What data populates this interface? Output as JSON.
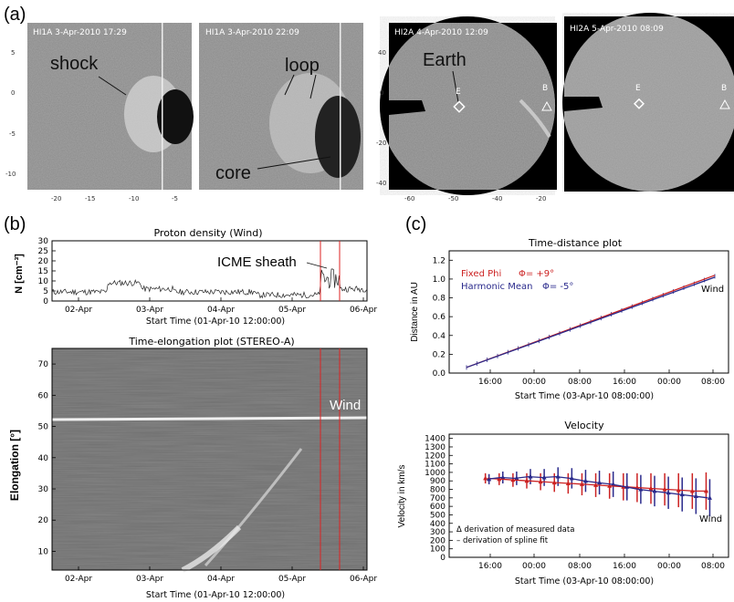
{
  "panel_labels": {
    "a": "(a)",
    "b": "(b)",
    "c": "(c)"
  },
  "images": [
    {
      "title": "HI1A   3-Apr-2010 17:29",
      "annotations": [
        "shock"
      ],
      "xticks": [
        "-20",
        "-15",
        "-10",
        "-5"
      ],
      "yticks": [
        "5",
        "0",
        "-5",
        "-10"
      ]
    },
    {
      "title": "HI1A   3-Apr-2010 22:09",
      "annotations": [
        "loop",
        "core"
      ],
      "xticks": [],
      "yticks": []
    },
    {
      "title": "HI2A   4-Apr-2010 12:09",
      "annotations": [
        "Earth",
        "E",
        "B"
      ],
      "xticks": [
        "-60",
        "-50",
        "-40",
        "-20"
      ],
      "yticks": [
        "40",
        "0",
        "-20",
        "-40"
      ]
    },
    {
      "title": "HI2A   5-Apr-2010 08:09",
      "annotations": [
        "E",
        "B"
      ],
      "xticks": [],
      "yticks": []
    }
  ],
  "chart_data": [
    {
      "type": "line",
      "title": "Proton density (Wind)",
      "ylabel": "N [cm⁻³]",
      "xlabel": "Start Time (01-Apr-10 12:00:00)",
      "x_ticks": [
        "02-Apr",
        "03-Apr",
        "04-Apr",
        "05-Apr",
        "06-Apr"
      ],
      "y_ticks": [
        0,
        5,
        10,
        15,
        20,
        25,
        30
      ],
      "ylim": [
        0,
        30
      ],
      "annotation": "ICME sheath",
      "markers": [
        "05-Apr 08:00",
        "05-Apr 17:00"
      ],
      "series_summary": "density fluctuating 3-12 cm^-3, jump to ~18 in sheath"
    },
    {
      "type": "heatmap",
      "title": "Time-elongation plot (STEREO-A)",
      "ylabel": "Elongation [°]",
      "xlabel": "Start Time (01-Apr-10 12:00:00)",
      "x_ticks": [
        "02-Apr",
        "03-Apr",
        "04-Apr",
        "05-Apr",
        "06-Apr"
      ],
      "y_ticks": [
        10,
        20,
        30,
        40,
        50,
        60,
        70
      ],
      "ylim": [
        4,
        75
      ],
      "annotation": "Wind"
    },
    {
      "type": "line",
      "title": "Time-distance plot",
      "ylabel": "Distance in AU",
      "xlabel": "Start Time (03-Apr-10 08:00:00)",
      "x_ticks": [
        "16:00",
        "00:00",
        "08:00",
        "16:00",
        "00:00",
        "08:00"
      ],
      "y_ticks": [
        "0.0",
        "0.2",
        "0.4",
        "0.6",
        "0.8",
        "1.0",
        "1.2"
      ],
      "ylim": [
        0,
        1.3
      ],
      "legend": [
        {
          "name": "Fixed Phi",
          "value": "Φ= +9°",
          "color": "#cc2222"
        },
        {
          "name": "Harmonic Mean",
          "value": "Φ= -5°",
          "color": "#2a2a8c"
        }
      ],
      "annotation": "Wind",
      "series": [
        {
          "name": "Fixed Phi",
          "x": [
            0,
            72
          ],
          "y": [
            0.06,
            1.04
          ]
        },
        {
          "name": "Harmonic Mean",
          "x": [
            0,
            72
          ],
          "y": [
            0.06,
            1.02
          ]
        }
      ]
    },
    {
      "type": "scatter",
      "title": "Velocity",
      "ylabel": "Velocity in km/s",
      "xlabel": "Start Time (03-Apr-10 08:00:00)",
      "x_ticks": [
        "16:00",
        "00:00",
        "08:00",
        "16:00",
        "00:00",
        "08:00"
      ],
      "y_ticks": [
        0,
        100,
        200,
        300,
        400,
        500,
        600,
        700,
        800,
        900,
        1000,
        1100,
        1200,
        1300,
        1400
      ],
      "ylim": [
        0,
        1450
      ],
      "annotation": "Wind",
      "legend_notes": [
        "Δ derivation of measured data",
        "– derivation of spline fit"
      ],
      "series": [
        {
          "name": "Fixed Phi",
          "x": [
            6,
            10,
            14,
            18,
            22,
            26,
            30,
            34,
            38,
            42,
            46,
            50,
            54,
            58,
            62,
            66,
            70
          ],
          "y": [
            930,
            920,
            910,
            900,
            890,
            880,
            870,
            860,
            850,
            840,
            830,
            820,
            810,
            800,
            790,
            780,
            780
          ]
        },
        {
          "name": "Harmonic Mean",
          "x": [
            6,
            10,
            14,
            18,
            22,
            26,
            30,
            34,
            38,
            42,
            46,
            50,
            54,
            58,
            62,
            66,
            70
          ],
          "y": [
            920,
            940,
            930,
            950,
            940,
            950,
            930,
            900,
            880,
            860,
            830,
            800,
            780,
            760,
            740,
            720,
            700
          ]
        }
      ]
    }
  ]
}
